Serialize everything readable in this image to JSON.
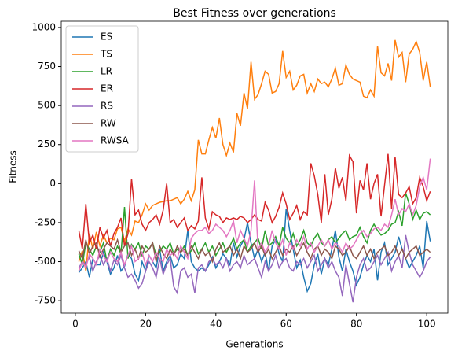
{
  "chart_data": {
    "type": "line",
    "title": "Best Fitness over generations",
    "xlabel": "Generations",
    "ylabel": "Fitness",
    "x": [
      1,
      2,
      3,
      4,
      5,
      6,
      7,
      8,
      9,
      10,
      11,
      12,
      13,
      14,
      15,
      16,
      17,
      18,
      19,
      20,
      21,
      22,
      23,
      24,
      25,
      26,
      27,
      28,
      29,
      30,
      31,
      32,
      33,
      34,
      35,
      36,
      37,
      38,
      39,
      40,
      41,
      42,
      43,
      44,
      45,
      46,
      47,
      48,
      49,
      50,
      51,
      52,
      53,
      54,
      55,
      56,
      57,
      58,
      59,
      60,
      61,
      62,
      63,
      64,
      65,
      66,
      67,
      68,
      69,
      70,
      71,
      72,
      73,
      74,
      75,
      76,
      77,
      78,
      79,
      80,
      81,
      82,
      83,
      84,
      85,
      86,
      87,
      88,
      89,
      90,
      91,
      92,
      93,
      94,
      95,
      96,
      97,
      98,
      99,
      100,
      101
    ],
    "xlim": [
      -4,
      106
    ],
    "xticks": [
      0,
      20,
      40,
      60,
      80,
      100
    ],
    "ylim": [
      -830,
      1040
    ],
    "yticks": [
      -750,
      -500,
      -250,
      0,
      250,
      500,
      750,
      1000
    ],
    "legend": "upper left",
    "series": [
      {
        "name": "ES",
        "color": "#1f77b4",
        "values": [
          -570,
          -540,
          -500,
          -600,
          -480,
          -520,
          -520,
          -440,
          -500,
          -580,
          -540,
          -460,
          -560,
          -530,
          -450,
          -480,
          -580,
          -620,
          -500,
          -560,
          -460,
          -500,
          -540,
          -420,
          -560,
          -500,
          -460,
          -540,
          -520,
          -450,
          -480,
          -300,
          -500,
          -540,
          -560,
          -540,
          -560,
          -520,
          -470,
          -540,
          -500,
          -450,
          -480,
          -520,
          -380,
          -470,
          -400,
          -360,
          -250,
          -380,
          -480,
          -420,
          -500,
          -440,
          -560,
          -400,
          -360,
          -450,
          -500,
          -160,
          -300,
          -420,
          -540,
          -490,
          -600,
          -690,
          -640,
          -520,
          -450,
          -580,
          -480,
          -520,
          -420,
          -300,
          -470,
          -560,
          -420,
          -500,
          -560,
          -650,
          -600,
          -520,
          -460,
          -500,
          -420,
          -620,
          -440,
          -380,
          -520,
          -480,
          -440,
          -340,
          -420,
          -480,
          -540,
          -500,
          -460,
          -400,
          -540,
          -240,
          -370
        ]
      },
      {
        "name": "TS",
        "color": "#ff7f0e",
        "values": [
          -500,
          -430,
          -560,
          -320,
          -420,
          -310,
          -400,
          -330,
          -380,
          -350,
          -360,
          -290,
          -280,
          -370,
          -290,
          -330,
          -240,
          -250,
          -200,
          -130,
          -170,
          -140,
          -130,
          -120,
          -115,
          -110,
          -110,
          -100,
          -90,
          -130,
          -100,
          -50,
          -110,
          -40,
          280,
          190,
          190,
          280,
          360,
          290,
          420,
          250,
          180,
          260,
          200,
          450,
          370,
          580,
          480,
          780,
          540,
          570,
          640,
          720,
          700,
          580,
          590,
          640,
          850,
          680,
          720,
          600,
          630,
          690,
          700,
          580,
          640,
          590,
          670,
          640,
          650,
          620,
          670,
          740,
          630,
          640,
          760,
          700,
          670,
          660,
          650,
          560,
          550,
          600,
          560,
          880,
          710,
          690,
          770,
          660,
          920,
          810,
          840,
          650,
          830,
          860,
          910,
          840,
          660,
          780,
          620
        ]
      },
      {
        "name": "LR",
        "color": "#2ca02c",
        "values": [
          -450,
          -520,
          -380,
          -420,
          -460,
          -400,
          -440,
          -380,
          -500,
          -420,
          -460,
          -400,
          -450,
          -150,
          -480,
          -390,
          -420,
          -380,
          -460,
          -400,
          -420,
          -380,
          -460,
          -440,
          -400,
          -420,
          -380,
          -450,
          -420,
          -440,
          -400,
          -460,
          -430,
          -380,
          -450,
          -420,
          -380,
          -440,
          -400,
          -460,
          -420,
          -380,
          -440,
          -400,
          -350,
          -420,
          -380,
          -360,
          -440,
          -400,
          -380,
          -350,
          -420,
          -300,
          -400,
          -380,
          -340,
          -400,
          -280,
          -350,
          -380,
          -320,
          -400,
          -360,
          -300,
          -380,
          -400,
          -350,
          -320,
          -380,
          -400,
          -360,
          -340,
          -380,
          -350,
          -320,
          -300,
          -360,
          -340,
          -330,
          -280,
          -340,
          -380,
          -300,
          -260,
          -300,
          -330,
          -320,
          -300,
          -260,
          -250,
          -180,
          -270,
          -60,
          -130,
          -230,
          -170,
          -230,
          -190,
          -180,
          -200
        ]
      },
      {
        "name": "ER",
        "color": "#d62728",
        "values": [
          -300,
          -420,
          -130,
          -380,
          -330,
          -420,
          -280,
          -350,
          -300,
          -400,
          -320,
          -280,
          -220,
          -400,
          -320,
          30,
          -200,
          -170,
          -260,
          -300,
          -250,
          -230,
          -200,
          -260,
          -170,
          0,
          -250,
          -230,
          -280,
          -250,
          -220,
          -300,
          -270,
          -290,
          -240,
          40,
          -220,
          -290,
          -180,
          -200,
          -210,
          -250,
          -220,
          -230,
          -220,
          -230,
          -210,
          -220,
          -250,
          -230,
          -200,
          -230,
          -240,
          -120,
          -170,
          -250,
          -210,
          -150,
          -60,
          -130,
          -230,
          -190,
          -140,
          -230,
          -180,
          -200,
          130,
          50,
          -70,
          -250,
          60,
          -200,
          -100,
          100,
          -30,
          40,
          -110,
          180,
          140,
          -190,
          20,
          -40,
          130,
          -100,
          0,
          60,
          -210,
          -10,
          190,
          -160,
          170,
          -70,
          -90,
          -60,
          -20,
          -130,
          -90,
          40,
          -20,
          -110,
          -50
        ]
      },
      {
        "name": "RS",
        "color": "#9467bd",
        "values": [
          -540,
          -500,
          -520,
          -470,
          -560,
          -500,
          -460,
          -520,
          -480,
          -560,
          -490,
          -520,
          -460,
          -540,
          -600,
          -580,
          -620,
          -670,
          -640,
          -560,
          -500,
          -540,
          -600,
          -480,
          -580,
          -520,
          -480,
          -660,
          -700,
          -560,
          -540,
          -600,
          -580,
          -700,
          -540,
          -520,
          -560,
          -500,
          -480,
          -520,
          -500,
          -540,
          -480,
          -560,
          -520,
          -500,
          -540,
          -460,
          -520,
          -500,
          -480,
          -540,
          -600,
          -500,
          -560,
          -520,
          -460,
          -540,
          -500,
          -480,
          -540,
          -560,
          -500,
          -520,
          -480,
          -540,
          -500,
          -460,
          -560,
          -520,
          -480,
          -540,
          -500,
          -560,
          -600,
          -720,
          -520,
          -640,
          -760,
          -600,
          -520,
          -480,
          -560,
          -540,
          -500,
          -460,
          -520,
          -480,
          -440,
          -560,
          -500,
          -460,
          -540,
          -330,
          -440,
          -520,
          -560,
          -600,
          -560,
          -500,
          -470
        ]
      },
      {
        "name": "RW",
        "color": "#8c564b",
        "values": [
          -430,
          -480,
          -360,
          -450,
          -400,
          -380,
          -470,
          -420,
          -380,
          -400,
          -420,
          -360,
          -440,
          -400,
          -380,
          -460,
          -420,
          -480,
          -400,
          -440,
          -420,
          -380,
          -500,
          -400,
          -450,
          -480,
          -420,
          -460,
          -400,
          -440,
          -420,
          -460,
          -400,
          -440,
          -480,
          -420,
          -460,
          -440,
          -500,
          -420,
          -380,
          -440,
          -420,
          -400,
          -460,
          -420,
          -480,
          -400,
          -440,
          -420,
          -380,
          -440,
          -400,
          -460,
          -420,
          -480,
          -440,
          -400,
          -460,
          -420,
          -440,
          -400,
          -460,
          -420,
          -380,
          -440,
          -480,
          -420,
          -400,
          -460,
          -420,
          -440,
          -480,
          -400,
          -420,
          -460,
          -440,
          -400,
          -460,
          -480,
          -440,
          -400,
          -460,
          -420,
          -480,
          -440,
          -420,
          -400,
          -460,
          -440,
          -400,
          -460,
          -420,
          -480,
          -440,
          -420,
          -400,
          -460,
          -440,
          -420,
          -440
        ]
      },
      {
        "name": "RWSA",
        "color": "#e377c2",
        "values": [
          -560,
          -500,
          -540,
          -450,
          -480,
          -520,
          -420,
          -460,
          -500,
          -440,
          -480,
          -500,
          -440,
          -520,
          -460,
          -400,
          -500,
          -480,
          -440,
          -520,
          -460,
          -500,
          -440,
          -480,
          -500,
          -420,
          -460,
          -440,
          -480,
          -400,
          -440,
          -480,
          -350,
          -320,
          -300,
          -300,
          -280,
          -320,
          -300,
          -260,
          -280,
          -300,
          -340,
          -300,
          -240,
          -380,
          -300,
          -350,
          -400,
          -300,
          20,
          -420,
          -380,
          -440,
          -400,
          -300,
          -380,
          -420,
          -360,
          -460,
          -380,
          -420,
          -360,
          -400,
          -340,
          -420,
          -380,
          -440,
          -400,
          -360,
          -400,
          -360,
          -420,
          -380,
          -400,
          -440,
          -380,
          -420,
          -400,
          -360,
          -320,
          -300,
          -340,
          -320,
          -290,
          -280,
          -300,
          -260,
          -280,
          -200,
          -100,
          -200,
          -160,
          -180,
          -130,
          -200,
          -140,
          -20,
          40,
          -40,
          160
        ]
      }
    ]
  }
}
